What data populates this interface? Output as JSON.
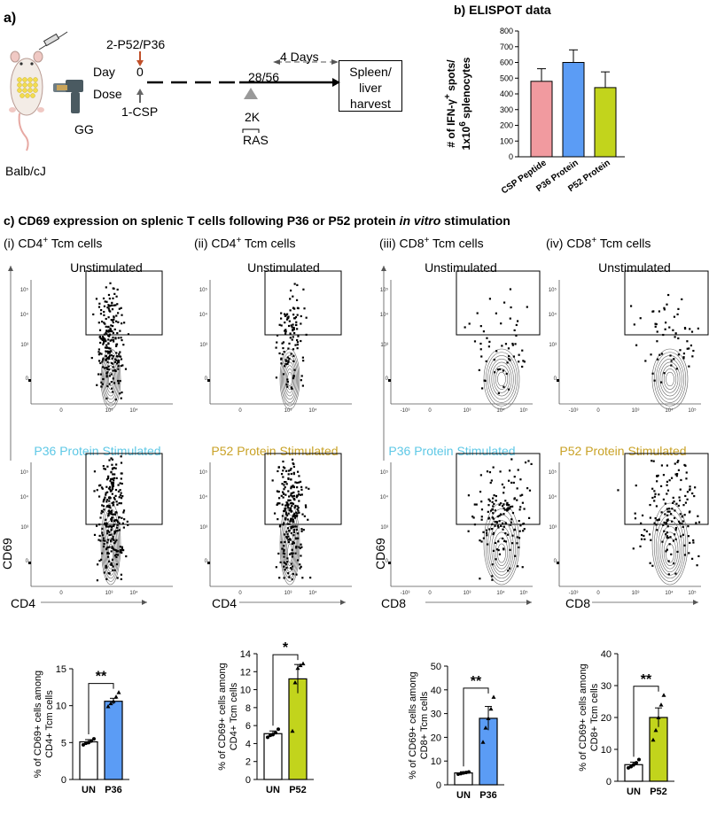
{
  "panel_a": {
    "label": "a)",
    "mouse_label": "Balb/cJ",
    "gun_label": "GG",
    "prime_label": "2-P52/P36",
    "day_label": "Day",
    "dose_label": "Dose",
    "day_zero": "0",
    "csp_label": "1-CSP",
    "day_28_56": "28/56",
    "four_days": "4 Days",
    "dose_2k": "2K",
    "ras_label": "RAS",
    "harvest_box": "Spleen/ liver harvest",
    "colors": {
      "prime_arrow": "#c0502a",
      "gray": "#777777"
    }
  },
  "panel_b": {
    "title": "b) ELISPOT data",
    "chart_data": {
      "type": "bar",
      "categories": [
        "CSP Peptide",
        "P36 Protein",
        "P52 Protein"
      ],
      "values": [
        480,
        600,
        440
      ],
      "errors": [
        80,
        80,
        100
      ],
      "colors": [
        "#f19a9f",
        "#5b9cf5",
        "#c2d41c"
      ],
      "ylabel": "# of IFN-γ+ spots/ 1x10^6 splenocytes",
      "ylabel_line1": "# of IFN-γ",
      "ylabel_line1_sup": "+",
      "ylabel_line1_end": " spots/",
      "ylabel_line2": "1x10",
      "ylabel_line2_sup": "6",
      "ylabel_line2_end": " splenocytes",
      "ylim": [
        0,
        800
      ],
      "yticks": [
        "0",
        "100",
        "200",
        "300",
        "400",
        "500",
        "600",
        "700",
        "800"
      ]
    }
  },
  "panel_c": {
    "title_prefix": "c) CD69 expression on splenic T cells following P36 or P52 protein ",
    "title_italic": "in vitro",
    "title_suffix": " stimulation",
    "subpanels": [
      {
        "roman": "(i) CD4",
        "sup": "+",
        "cell": " Tcm cells",
        "stim_label": "P36 Protein Stimulated",
        "stim_color": "#5ec8e6",
        "x_axis": "CD4"
      },
      {
        "roman": "(ii) CD4",
        "sup": "+",
        "cell": " Tcm cells",
        "stim_label": "P52 Protein Stimulated",
        "stim_color": "#c9a226",
        "x_axis": "CD4"
      },
      {
        "roman": "(iii) CD8",
        "sup": "+",
        "cell": " Tcm cells",
        "stim_label": "P36 Protein Stimulated",
        "stim_color": "#5ec8e6",
        "x_axis": "CD8"
      },
      {
        "roman": "(iv) CD8",
        "sup": "+",
        "cell": " Tcm cells",
        "stim_label": "P52 Protein Stimulated",
        "stim_color": "#c9a226",
        "x_axis": "CD8"
      }
    ],
    "unstim_label": "Unstimulated",
    "y_axis": "CD69",
    "flow_ticks": {
      "cd4_x": [
        "0",
        "10³",
        "10⁴"
      ],
      "cd8_x": [
        "-10³",
        "0",
        "10³",
        "10⁴",
        "10⁵"
      ],
      "y": [
        "10⁵",
        "10⁴",
        "10³",
        "0"
      ]
    }
  },
  "chart_data": [
    {
      "type": "bar",
      "title": "ELISPOT data",
      "categories": [
        "CSP Peptide",
        "P36 Protein",
        "P52 Protein"
      ],
      "values": [
        480,
        600,
        440
      ],
      "ylabel": "# of IFN-γ+ spots/ 1x10^6 splenocytes",
      "ylim": [
        0,
        800
      ]
    },
    {
      "type": "bar",
      "title": "(i) CD4+ Tcm cells",
      "categories": [
        "UN",
        "P36"
      ],
      "values": [
        5.1,
        10.6
      ],
      "errors": [
        0.3,
        0.4
      ],
      "points": [
        [
          4.7,
          4.9,
          5.0,
          5.2,
          5.5
        ],
        [
          9.9,
          10.3,
          10.6,
          11.2,
          11.8
        ]
      ],
      "colors": [
        "#ffffff",
        "#5b9cf5"
      ],
      "ylabel": "% of CD69+ cells among CD4+ Tcm cells",
      "ylim": [
        0,
        15
      ],
      "yticks": [
        "0",
        "5",
        "10",
        "15"
      ],
      "significance": "**"
    },
    {
      "type": "bar",
      "title": "(ii) CD4+ Tcm cells",
      "categories": [
        "UN",
        "P52"
      ],
      "values": [
        5.1,
        11.2
      ],
      "errors": [
        0.3,
        1.6
      ],
      "points": [
        [
          4.7,
          4.9,
          5.0,
          5.2,
          5.6
        ],
        [
          5.4,
          10.8,
          12.4,
          12.7,
          12.9
        ]
      ],
      "colors": [
        "#ffffff",
        "#c2d41c"
      ],
      "ylabel": "% of CD69+ cells among CD4+ Tcm cells",
      "ylim": [
        0,
        14
      ],
      "yticks": [
        "0",
        "2",
        "4",
        "6",
        "8",
        "10",
        "12",
        "14"
      ],
      "significance": "*"
    },
    {
      "type": "bar",
      "title": "(iii) CD8+ Tcm cells",
      "categories": [
        "UN",
        "P36"
      ],
      "values": [
        5,
        28
      ],
      "errors": [
        0.5,
        5
      ],
      "points": [
        [
          4.5,
          4.7,
          5.0,
          5.2,
          5.4
        ],
        [
          18,
          24,
          28,
          32,
          37
        ]
      ],
      "colors": [
        "#ffffff",
        "#5b9cf5"
      ],
      "ylabel": "% of CD69+ cells among CD8+ Tcm cells",
      "ylim": [
        0,
        50
      ],
      "yticks": [
        "0",
        "10",
        "20",
        "30",
        "40",
        "50"
      ],
      "significance": "**"
    },
    {
      "type": "bar",
      "title": "(iv) CD8+ Tcm cells",
      "categories": [
        "UN",
        "P52"
      ],
      "values": [
        5.2,
        20
      ],
      "errors": [
        0.8,
        3
      ],
      "points": [
        [
          4.2,
          4.6,
          5.2,
          5.8,
          6.8
        ],
        [
          13,
          16,
          20,
          24,
          27
        ]
      ],
      "colors": [
        "#ffffff",
        "#c2d41c"
      ],
      "ylabel": "% of CD69+ cells among CD8+ Tcm cells",
      "ylim": [
        0,
        40
      ],
      "yticks": [
        "0",
        "10",
        "20",
        "30",
        "40"
      ],
      "significance": "**"
    }
  ]
}
